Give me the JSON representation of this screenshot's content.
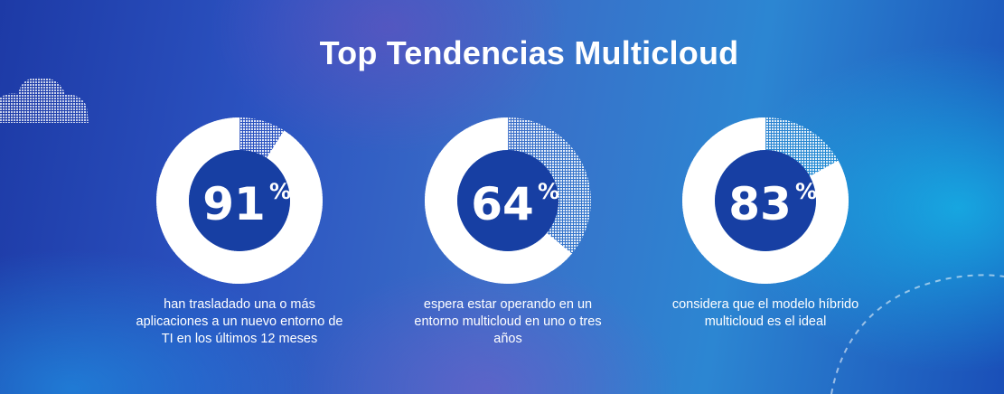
{
  "title": "Top Tendencias Multicloud",
  "colors": {
    "ring": "#ffffff",
    "center": "#173fa3",
    "text": "#ffffff"
  },
  "stats": [
    {
      "value": 91,
      "label": "91",
      "suffix": "%",
      "description": "han trasladado una o más aplicaciones a un nuevo entorno de TI en los últimos 12 meses"
    },
    {
      "value": 64,
      "label": "64",
      "suffix": "%",
      "description": "espera estar operando en un entorno multicloud en uno o tres años"
    },
    {
      "value": 83,
      "label": "83",
      "suffix": "%",
      "description": "considera que el modelo híbrido multicloud es el ideal"
    }
  ]
}
